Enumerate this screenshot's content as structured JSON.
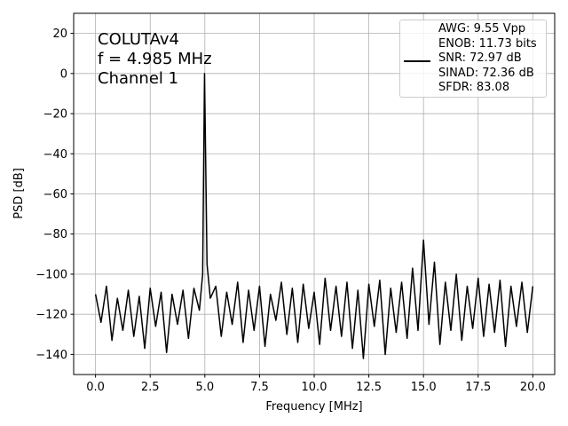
{
  "chart_data": {
    "type": "line",
    "xlabel": "Frequency [MHz]",
    "ylabel": "PSD [dB]",
    "annotation": [
      "COLUTAv4",
      "f = 4.985 MHz",
      "Channel 1"
    ],
    "xlim": [
      -1.0,
      21.0
    ],
    "ylim": [
      -150,
      30
    ],
    "xticks": [
      {
        "value": 0,
        "label": "0.0"
      },
      2.5,
      {
        "value": 5,
        "label": "5.0"
      },
      7.5,
      {
        "value": 10,
        "label": "10.0"
      },
      12.5,
      {
        "value": 15,
        "label": "15.0"
      },
      17.5,
      {
        "value": 20,
        "label": "20.0"
      }
    ],
    "yticks": [
      {
        "value": -140,
        "label": "−140"
      },
      {
        "value": -120,
        "label": "−120"
      },
      {
        "value": -100,
        "label": "−100"
      },
      {
        "value": -80,
        "label": "−80"
      },
      {
        "value": -60,
        "label": "−60"
      },
      {
        "value": -40,
        "label": "−40"
      },
      {
        "value": -20,
        "label": "−20"
      },
      0,
      20
    ],
    "grid": true,
    "legend": "upper right",
    "x": [
      0,
      0.25,
      0.5,
      0.75,
      1.0,
      1.25,
      1.5,
      1.75,
      2.0,
      2.25,
      2.5,
      2.75,
      3.0,
      3.25,
      3.5,
      3.75,
      4.0,
      4.25,
      4.5,
      4.75,
      4.9,
      4.985,
      5.1,
      5.25,
      5.5,
      5.75,
      6.0,
      6.25,
      6.5,
      6.75,
      7.0,
      7.25,
      7.5,
      7.75,
      8.0,
      8.25,
      8.5,
      8.75,
      9.0,
      9.25,
      9.5,
      9.75,
      10.0,
      10.25,
      10.5,
      10.75,
      11.0,
      11.25,
      11.5,
      11.75,
      12.0,
      12.25,
      12.5,
      12.75,
      13.0,
      13.25,
      13.5,
      13.75,
      14.0,
      14.25,
      14.5,
      14.75,
      15.0,
      15.25,
      15.5,
      15.75,
      16.0,
      16.25,
      16.5,
      16.75,
      17.0,
      17.25,
      17.5,
      17.75,
      18.0,
      18.25,
      18.5,
      18.75,
      19.0,
      19.25,
      19.5,
      19.75,
      20.0
    ],
    "series": [
      {
        "name": "AWG: 9.55 Vpp\nENOB: 11.73 bits\nSNR: 72.97 dB\nSINAD: 72.36 dB\nSFDR: 83.08",
        "color": "#000000",
        "values": [
          -110,
          -124,
          -106,
          -133,
          -112,
          -128,
          -108,
          -131,
          -111,
          -137,
          -107,
          -126,
          -109,
          -139,
          -110,
          -125,
          -108,
          -132,
          -107,
          -118,
          -100,
          0,
          -95,
          -112,
          -106,
          -131,
          -109,
          -125,
          -104,
          -134,
          -108,
          -128,
          -106,
          -136,
          -110,
          -123,
          -104,
          -130,
          -107,
          -134,
          -105,
          -127,
          -109,
          -135,
          -102,
          -128,
          -106,
          -131,
          -104,
          -137,
          -108,
          -142,
          -105,
          -126,
          -103,
          -140,
          -107,
          -129,
          -104,
          -132,
          -97,
          -128,
          -83,
          -125,
          -94,
          -135,
          -104,
          -128,
          -100,
          -133,
          -106,
          -127,
          -102,
          -131,
          -105,
          -129,
          -103,
          -136,
          -106,
          -126,
          -104,
          -129,
          -106
        ]
      }
    ]
  }
}
